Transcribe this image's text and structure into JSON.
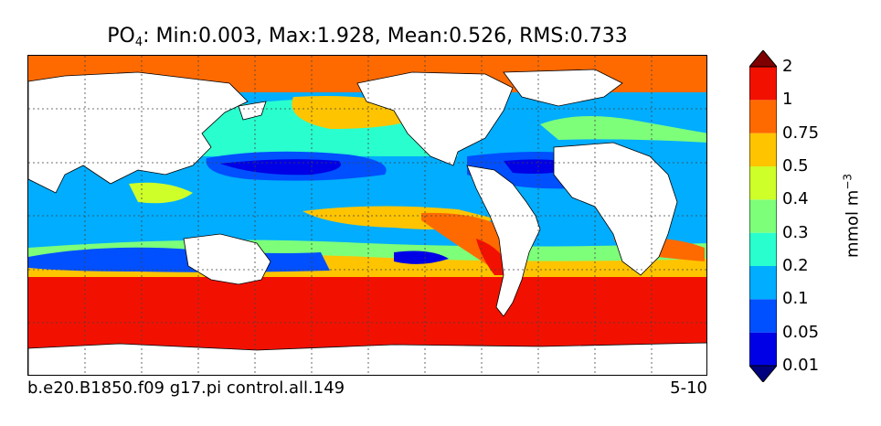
{
  "title": {
    "variable": "PO",
    "subscript": "4",
    "stats": ": Min:0.003, Max:1.928, Mean:0.526, RMS:0.733"
  },
  "footer": {
    "case_name": "b.e20.B1850.f09 g17.pi control.all.149",
    "years": "5-10"
  },
  "colorbar": {
    "units_base": "mmol m",
    "units_exp": "−3",
    "levels": [
      "0.01",
      "0.05",
      "0.1",
      "0.2",
      "0.3",
      "0.4",
      "0.5",
      "0.75",
      "1",
      "2"
    ],
    "colors": [
      "#00007f",
      "#0000e6",
      "#0050ff",
      "#00adff",
      "#29ffce",
      "#7dff7a",
      "#ceff29",
      "#ffc400",
      "#ff6a00",
      "#f21100",
      "#7f0000"
    ]
  }
}
